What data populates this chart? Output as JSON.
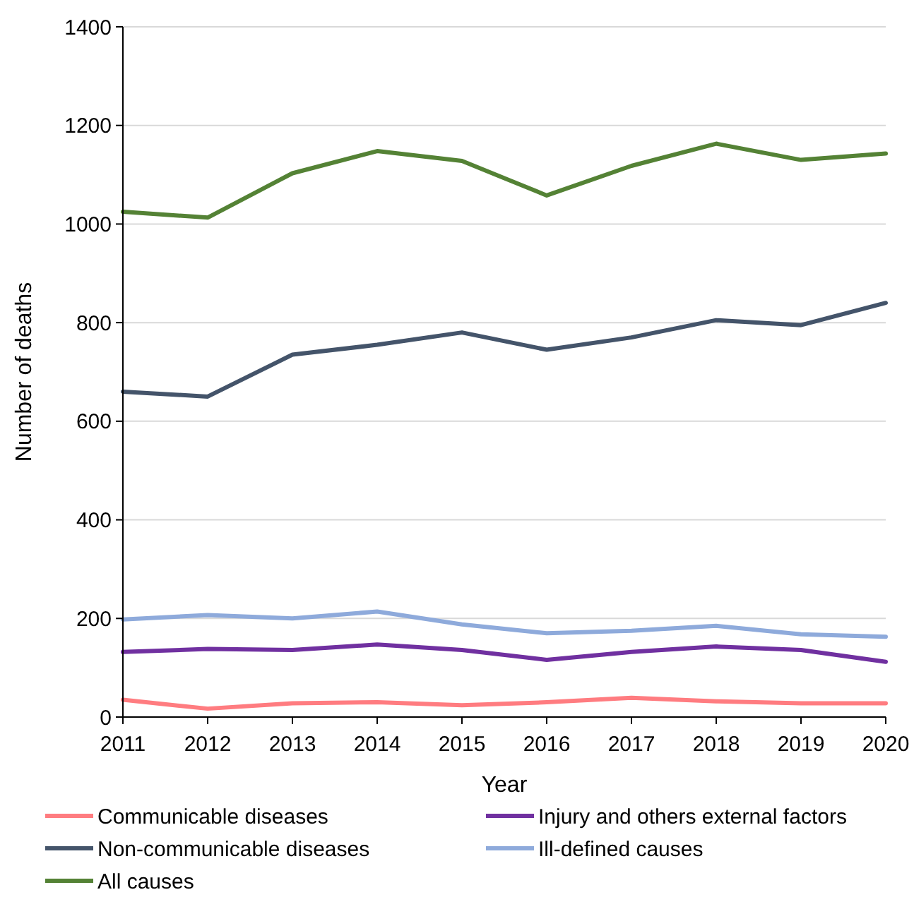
{
  "chart_data": {
    "type": "line",
    "xlabel": "Year",
    "ylabel": "Number of deaths",
    "x": [
      2011,
      2012,
      2013,
      2014,
      2015,
      2016,
      2017,
      2018,
      2019,
      2020
    ],
    "xlim": [
      2011,
      2020
    ],
    "xticks": [
      2011,
      2012,
      2013,
      2014,
      2015,
      2016,
      2017,
      2018,
      2019,
      2020
    ],
    "ylim": [
      0,
      1400
    ],
    "yticks": [
      0,
      200,
      400,
      600,
      800,
      1000,
      1200,
      1400
    ],
    "grid": "y",
    "legend": "bottom",
    "line_style": "solid",
    "marker": "none",
    "series": [
      {
        "name": "Communicable diseases",
        "color": "#ff7c80",
        "values": [
          35,
          17,
          28,
          30,
          24,
          30,
          39,
          32,
          28,
          28
        ]
      },
      {
        "name": "Injury and others external factors",
        "color": "#7030a0",
        "values": [
          132,
          138,
          136,
          147,
          136,
          116,
          132,
          143,
          136,
          112
        ]
      },
      {
        "name": "Non-communicable diseases",
        "color": "#44546a",
        "values": [
          660,
          650,
          735,
          755,
          780,
          745,
          770,
          805,
          795,
          840
        ]
      },
      {
        "name": "Ill-defined causes",
        "color": "#8eaadb",
        "values": [
          198,
          207,
          200,
          214,
          188,
          170,
          175,
          185,
          168,
          163
        ]
      },
      {
        "name": "All causes",
        "color": "#548235",
        "values": [
          1025,
          1013,
          1103,
          1148,
          1128,
          1058,
          1118,
          1163,
          1130,
          1143
        ]
      }
    ]
  }
}
